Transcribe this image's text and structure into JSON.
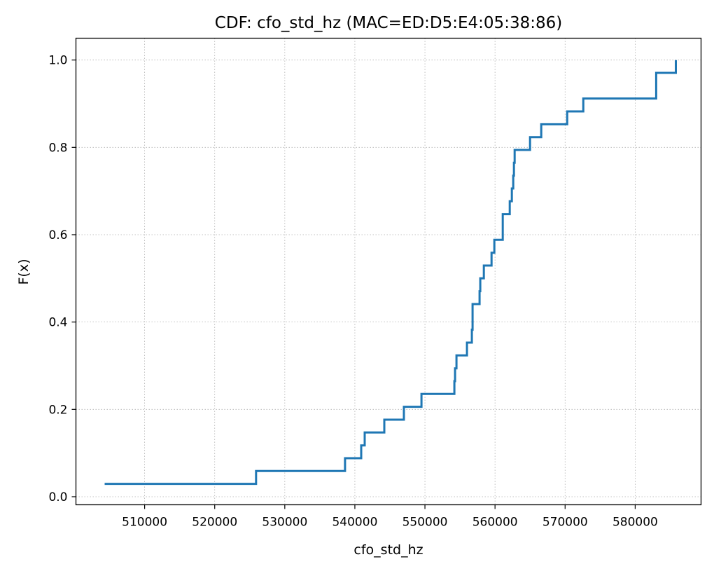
{
  "chart_data": {
    "type": "line",
    "title": "CDF: cfo_std_hz (MAC=ED:D5:E4:05:38:86)",
    "xlabel": "cfo_std_hz",
    "ylabel": "F(x)",
    "xlim": [
      500200,
      589400
    ],
    "ylim": [
      -0.0185,
      1.05
    ],
    "xticks": [
      510000,
      520000,
      530000,
      540000,
      550000,
      560000,
      570000,
      580000
    ],
    "xtick_labels": [
      "510000",
      "520000",
      "530000",
      "540000",
      "550000",
      "560000",
      "570000",
      "580000"
    ],
    "yticks": [
      0.0,
      0.2,
      0.4,
      0.6,
      0.8,
      1.0
    ],
    "ytick_labels": [
      "0.0",
      "0.2",
      "0.4",
      "0.6",
      "0.8",
      "1.0"
    ],
    "grid": true,
    "step": "post",
    "color": "#1f77b4",
    "series": [
      {
        "x": [
          504300,
          525900,
          538600,
          540900,
          541400,
          544200,
          547000,
          549500,
          554200,
          554300,
          554500,
          556000,
          556700,
          556800,
          557800,
          557900,
          558400,
          559500,
          559900,
          560300,
          561100,
          562100,
          562400,
          562600,
          562700,
          562800,
          562900,
          565000,
          566600,
          570300,
          572600,
          583000,
          585800
        ],
        "y": [
          0.0294,
          0.0588,
          0.0882,
          0.1176,
          0.1471,
          0.1765,
          0.2059,
          0.2353,
          0.2647,
          0.2941,
          0.3235,
          0.3529,
          0.3824,
          0.4412,
          0.4706,
          0.5,
          0.5294,
          0.5588,
          0.5882,
          0.5882,
          0.6471,
          0.6765,
          0.7059,
          0.7353,
          0.7647,
          0.7941,
          0.7941,
          0.8235,
          0.8529,
          0.8824,
          0.9118,
          0.9706,
          1.0
        ]
      }
    ]
  }
}
